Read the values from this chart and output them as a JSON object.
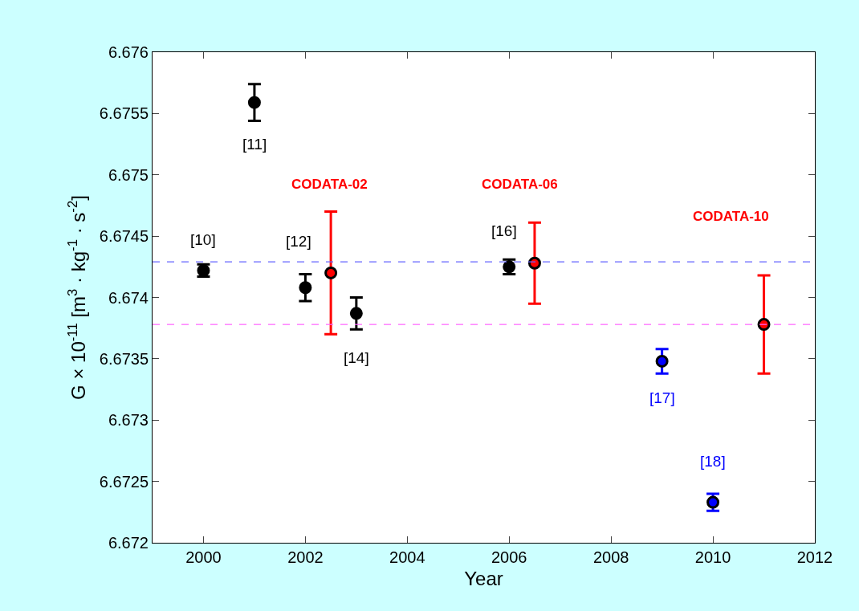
{
  "chart_data": {
    "type": "scatter",
    "xlabel": "Year",
    "ylabel": "G × 10$^{-11}$ [m$^{3}$ · kg$^{-1}$ · s$^{-2}$]",
    "xlim": [
      1999,
      2012
    ],
    "xticks": [
      2000,
      2002,
      2004,
      2006,
      2008,
      2010,
      2012
    ],
    "ylim": [
      6.672,
      6.676
    ],
    "yticks": [
      6.672,
      6.6725,
      6.673,
      6.6735,
      6.674,
      6.6745,
      6.675,
      6.6755,
      6.676
    ],
    "marker": "circle",
    "series": [
      {
        "color": "#000000",
        "x": [
          2000,
          2001,
          2002,
          2003,
          2006
        ],
        "values": [
          6.67422,
          6.67559,
          6.67408,
          6.67387,
          6.67425
        ],
        "errors": [
          5e-05,
          0.00015,
          0.00011,
          0.00013,
          6e-05
        ]
      },
      {
        "color": "#ff0000",
        "x": [
          2002.5,
          2006.5,
          2011
        ],
        "values": [
          6.6742,
          6.67428,
          6.67378
        ],
        "errors": [
          0.0005,
          0.00033,
          0.0004
        ]
      },
      {
        "color": "#0000ff",
        "x": [
          2009,
          2010
        ],
        "values": [
          6.67348,
          6.67233
        ],
        "errors": [
          0.0001,
          7e-05
        ]
      }
    ],
    "ref_lines": [
      {
        "axis": "y",
        "value": 6.67429,
        "color": "#6666ff",
        "line_style": "dashed"
      },
      {
        "axis": "y",
        "value": 6.67378,
        "color": "#ff66ff",
        "line_style": "dashed"
      }
    ],
    "annotations": [
      {
        "text": "[10]",
        "x": 2000,
        "y": 6.67422
      },
      {
        "text": "[11]",
        "x": 2001,
        "y": 6.67559
      },
      {
        "text": "[12]",
        "x": 2002,
        "y": 6.67408
      },
      {
        "text": "[14]",
        "x": 2003,
        "y": 6.67387
      },
      {
        "text": "[16]",
        "x": 2006,
        "y": 6.67425
      },
      {
        "text": "[17]",
        "x": 2009,
        "y": 6.67348
      },
      {
        "text": "[18]",
        "x": 2010,
        "y": 6.67233
      },
      "CODATA-02",
      "CODATA-06",
      "CODATA-10"
    ]
  }
}
